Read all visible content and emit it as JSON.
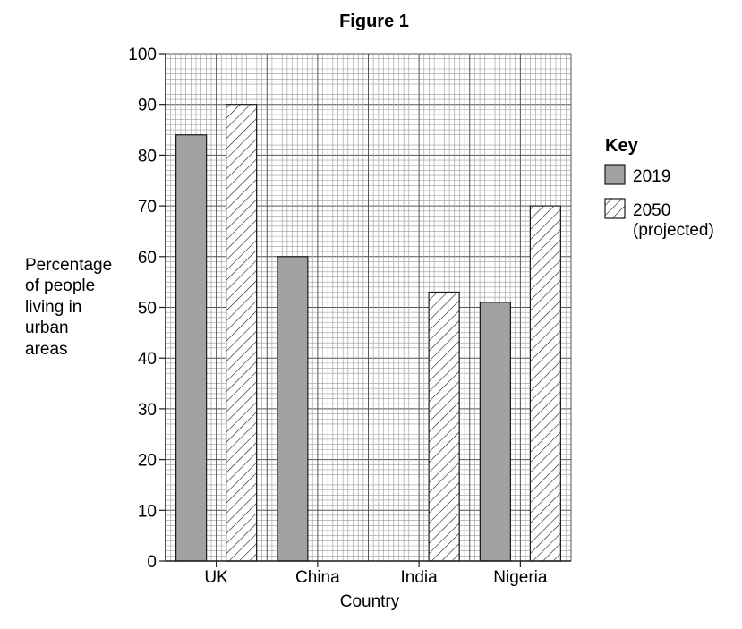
{
  "chart_data": {
    "type": "bar",
    "title": "Figure 1",
    "xlabel": "Country",
    "ylabel_lines": [
      "Percentage",
      "of people",
      "living in",
      "urban",
      "areas"
    ],
    "categories": [
      "UK",
      "China",
      "India",
      "Nigeria"
    ],
    "series": [
      {
        "name": "2019",
        "values": [
          84,
          60,
          null,
          51
        ],
        "style": "solid",
        "color": "#a2a2a2"
      },
      {
        "name": "2050 (projected)",
        "values": [
          90,
          null,
          53,
          70
        ],
        "style": "hatched",
        "color": "#ffffff"
      }
    ],
    "ylim": [
      0,
      100
    ],
    "yticks": [
      0,
      10,
      20,
      30,
      40,
      50,
      60,
      70,
      80,
      90,
      100
    ],
    "grid": true,
    "legend": {
      "title": "Key",
      "placement": "right",
      "entries": [
        {
          "lines": [
            "2019"
          ]
        },
        {
          "lines": [
            "2050",
            "(projected)"
          ]
        }
      ]
    }
  }
}
